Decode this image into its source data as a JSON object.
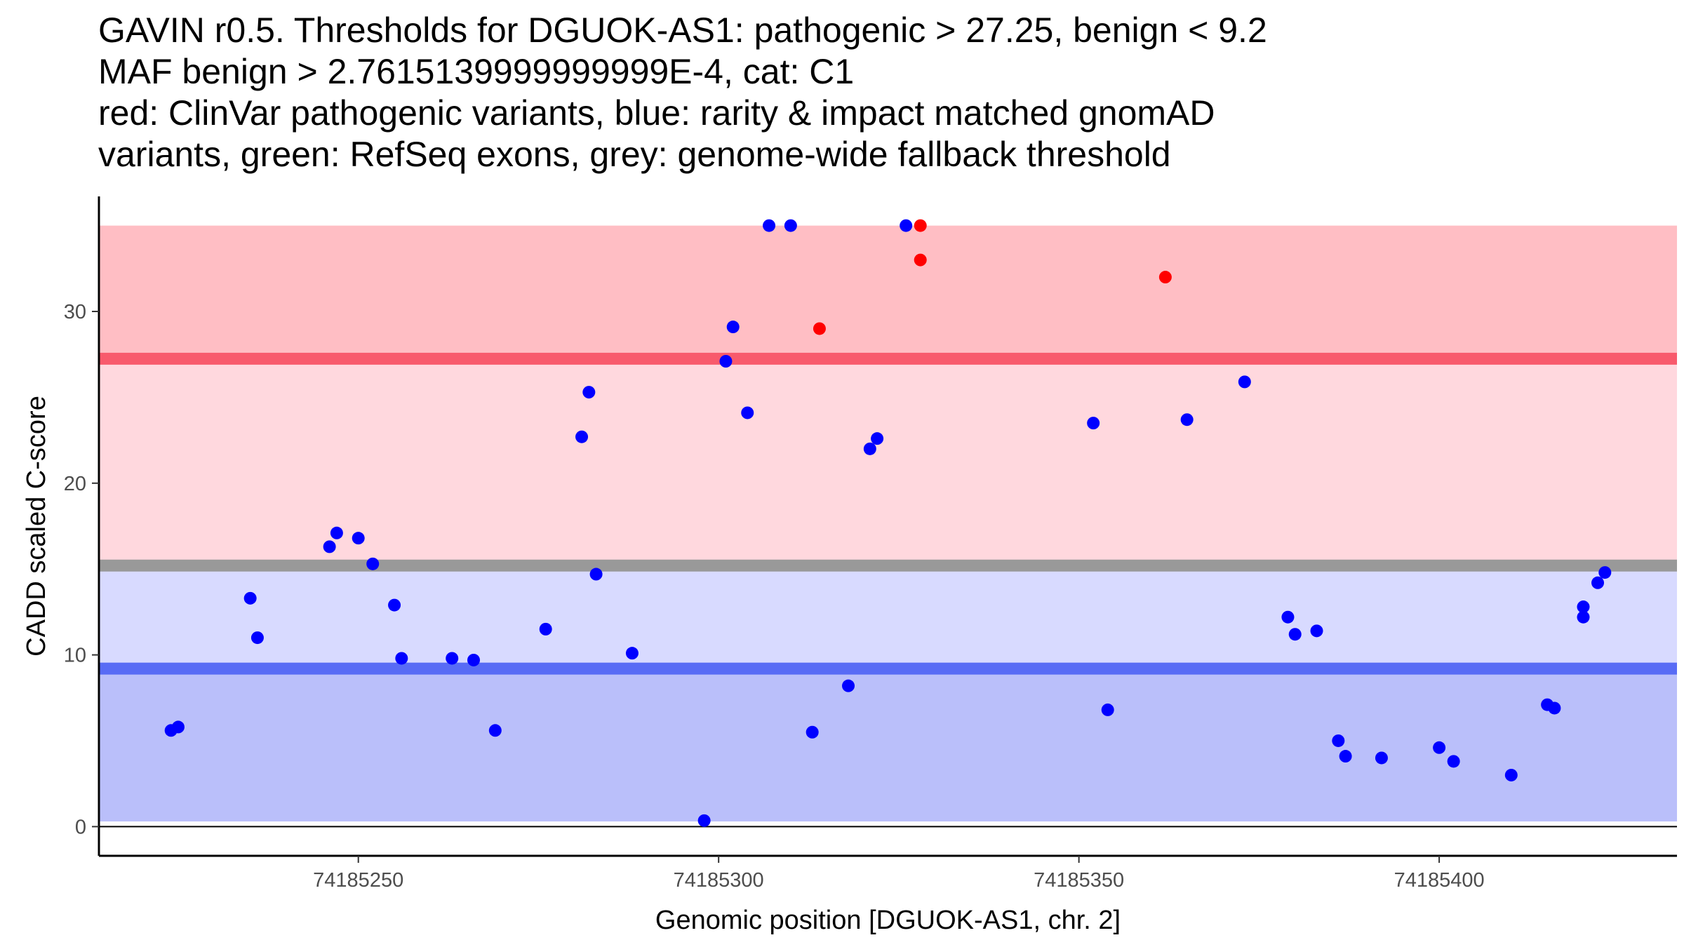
{
  "chart_data": {
    "type": "scatter",
    "title_lines": [
      "GAVIN r0.5. Thresholds for DGUOK-AS1: pathogenic > 27.25, benign < 9.2",
      "MAF benign > 2.7615139999999999E-4, cat: C1",
      "red: ClinVar pathogenic variants, blue: rarity & impact matched gnomAD",
      "variants, green: RefSeq exons, grey: genome-wide fallback threshold"
    ],
    "xlabel": "Genomic position [DGUOK-AS1, chr. 2]",
    "ylabel": "CADD scaled C-score",
    "xlim": [
      74185214,
      74185433
    ],
    "ylim": [
      -1.7,
      36.7
    ],
    "x_ticks": [
      74185250,
      74185300,
      74185350,
      74185400
    ],
    "x_tick_labels": [
      "74185250",
      "74185300",
      "74185350",
      "74185400"
    ],
    "y_ticks": [
      0,
      10,
      20,
      30
    ],
    "y_tick_labels": [
      "0",
      "10",
      "20",
      "30"
    ],
    "colors": {
      "pathogenic_band": "#ffbec4",
      "middle_upper_band": "#ffd8de",
      "middle_lower_band": "#d8daff",
      "benign_band": "#babffa",
      "pathogenic_threshold_line": "#f85a6c",
      "fallback_threshold_line": "#999999",
      "benign_threshold_line": "#586bf5",
      "clinvar_points": "#ff0000",
      "gnomad_points": "#0000ff"
    },
    "bands": [
      {
        "name": "pathogenic-band",
        "y0": 27.25,
        "y1": 35,
        "color_key": "pathogenic_band"
      },
      {
        "name": "middle-upper-band",
        "y0": 15.2,
        "y1": 27.25,
        "color_key": "middle_upper_band"
      },
      {
        "name": "middle-lower-band",
        "y0": 9.2,
        "y1": 15.2,
        "color_key": "middle_lower_band"
      },
      {
        "name": "benign-band",
        "y0": 0.3,
        "y1": 9.2,
        "color_key": "benign_band"
      }
    ],
    "threshold_lines": [
      {
        "name": "pathogenic-threshold-line",
        "y": 27.25,
        "color_key": "pathogenic_threshold_line"
      },
      {
        "name": "fallback-threshold-line",
        "y": 15.2,
        "color_key": "fallback_threshold_line"
      },
      {
        "name": "benign-threshold-line",
        "y": 9.2,
        "color_key": "benign_threshold_line"
      }
    ],
    "series": [
      {
        "name": "gnomAD matched variants",
        "color_key": "gnomad_points",
        "points": [
          [
            74185224,
            5.6
          ],
          [
            74185225,
            5.8
          ],
          [
            74185235,
            13.3
          ],
          [
            74185236,
            11.0
          ],
          [
            74185246,
            16.3
          ],
          [
            74185247,
            17.1
          ],
          [
            74185250,
            16.8
          ],
          [
            74185252,
            15.3
          ],
          [
            74185255,
            12.9
          ],
          [
            74185256,
            9.8
          ],
          [
            74185263,
            9.8
          ],
          [
            74185266,
            9.7
          ],
          [
            74185269,
            5.6
          ],
          [
            74185276,
            11.5
          ],
          [
            74185281,
            22.7
          ],
          [
            74185282,
            25.3
          ],
          [
            74185283,
            14.7
          ],
          [
            74185288,
            10.1
          ],
          [
            74185298,
            0.35
          ],
          [
            74185301,
            27.1
          ],
          [
            74185302,
            29.1
          ],
          [
            74185304,
            24.1
          ],
          [
            74185307,
            35.0
          ],
          [
            74185310,
            35.0
          ],
          [
            74185313,
            5.5
          ],
          [
            74185318,
            8.2
          ],
          [
            74185321,
            22.0
          ],
          [
            74185322,
            22.6
          ],
          [
            74185326,
            35.0
          ],
          [
            74185352,
            23.5
          ],
          [
            74185354,
            6.8
          ],
          [
            74185365,
            23.7
          ],
          [
            74185373,
            25.9
          ],
          [
            74185379,
            12.2
          ],
          [
            74185380,
            11.2
          ],
          [
            74185383,
            11.4
          ],
          [
            74185386,
            5.0
          ],
          [
            74185387,
            4.1
          ],
          [
            74185392,
            4.0
          ],
          [
            74185400,
            4.6
          ],
          [
            74185402,
            3.8
          ],
          [
            74185410,
            3.0
          ],
          [
            74185415,
            7.1
          ],
          [
            74185416,
            6.9
          ],
          [
            74185420,
            12.8
          ],
          [
            74185420,
            12.2
          ],
          [
            74185422,
            14.2
          ],
          [
            74185423,
            14.8
          ]
        ]
      },
      {
        "name": "ClinVar pathogenic variants",
        "color_key": "clinvar_points",
        "points": [
          [
            74185314,
            29.0
          ],
          [
            74185328,
            35.0
          ],
          [
            74185328,
            33.0
          ],
          [
            74185362,
            32.0
          ]
        ]
      }
    ]
  }
}
